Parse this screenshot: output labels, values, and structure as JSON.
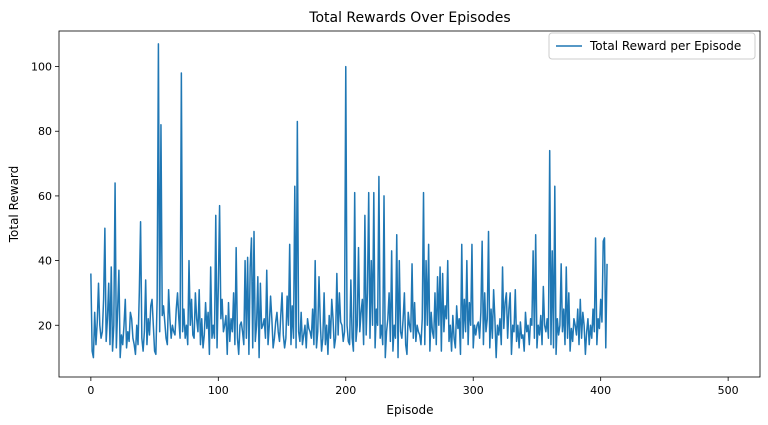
{
  "chart_data": {
    "type": "line",
    "title": "Total Rewards Over Episodes",
    "xlabel": "Episode",
    "ylabel": "Total Reward",
    "xlim": [
      -25,
      525
    ],
    "ylim": [
      4,
      111
    ],
    "xticks": [
      0,
      100,
      200,
      300,
      400,
      500
    ],
    "yticks": [
      20,
      40,
      60,
      80,
      100
    ],
    "grid": false,
    "legend": "top-right",
    "series": [
      {
        "name": "Total Reward per Episode",
        "color": "#1f77b4",
        "values": [
          36,
          12,
          10,
          24,
          14,
          21,
          33,
          20,
          16,
          18,
          28,
          50,
          15,
          22,
          33,
          14,
          38,
          12,
          20,
          64,
          13,
          25,
          37,
          10,
          17,
          14,
          20,
          28,
          13,
          18,
          15,
          24,
          22,
          16,
          14,
          11,
          20,
          14,
          30,
          52,
          16,
          12,
          18,
          34,
          14,
          22,
          17,
          26,
          28,
          20,
          12,
          11,
          28,
          107,
          18,
          82,
          23,
          26,
          21,
          16,
          14,
          31,
          22,
          16,
          20,
          18,
          17,
          25,
          30,
          22,
          16,
          98,
          18,
          25,
          16,
          20,
          14,
          40,
          20,
          28,
          17,
          16,
          30,
          22,
          18,
          31,
          14,
          22,
          13,
          17,
          27,
          19,
          24,
          11,
          38,
          16,
          20,
          16,
          54,
          13,
          32,
          57,
          22,
          28,
          18,
          20,
          23,
          11,
          27,
          15,
          22,
          18,
          30,
          14,
          44,
          16,
          11,
          20,
          21,
          18,
          14,
          40,
          16,
          41,
          11,
          38,
          47,
          13,
          49,
          15,
          20,
          35,
          10,
          33,
          19,
          20,
          22,
          16,
          37,
          14,
          20,
          29,
          22,
          13,
          16,
          21,
          24,
          18,
          15,
          23,
          30,
          17,
          13,
          16,
          29,
          20,
          45,
          14,
          26,
          16,
          63,
          13,
          83,
          18,
          15,
          24,
          14,
          17,
          20,
          13,
          22,
          19,
          18,
          16,
          25,
          14,
          40,
          13,
          18,
          35,
          21,
          12,
          16,
          30,
          14,
          20,
          11,
          23,
          16,
          28,
          22,
          13,
          16,
          36,
          17,
          30,
          21,
          20,
          15,
          18,
          100,
          20,
          15,
          14,
          34,
          16,
          12,
          61,
          15,
          20,
          44,
          18,
          24,
          28,
          14,
          54,
          17,
          30,
          61,
          16,
          40,
          20,
          61,
          13,
          25,
          20,
          66,
          16,
          20,
          14,
          60,
          10,
          18,
          22,
          30,
          15,
          43,
          12,
          20,
          16,
          48,
          10,
          40,
          18,
          16,
          22,
          30,
          14,
          11,
          24,
          20,
          18,
          39,
          16,
          27,
          15,
          20,
          18,
          17,
          14,
          22,
          61,
          14,
          40,
          20,
          45,
          12,
          24,
          18,
          16,
          30,
          14,
          35,
          20,
          38,
          12,
          36,
          18,
          26,
          22,
          40,
          15,
          20,
          12,
          23,
          16,
          13,
          26,
          19,
          22,
          11,
          45,
          16,
          28,
          18,
          40,
          14,
          27,
          20,
          45,
          13,
          20,
          17,
          20,
          21,
          16,
          24,
          46,
          14,
          30,
          18,
          22,
          49,
          13,
          25,
          16,
          31,
          22,
          10,
          20,
          17,
          22,
          14,
          38,
          19,
          27,
          30,
          16,
          25,
          30,
          11,
          20,
          18,
          31,
          15,
          20,
          13,
          21,
          16,
          17,
          12,
          24,
          18,
          20,
          14,
          22,
          20,
          43,
          16,
          48,
          13,
          20,
          17,
          23,
          14,
          32,
          20,
          18,
          22,
          16,
          74,
          14,
          43,
          13,
          63,
          11,
          22,
          17,
          20,
          39,
          18,
          25,
          14,
          38,
          16,
          30,
          12,
          19,
          15,
          22,
          20,
          17,
          25,
          14,
          28,
          16,
          24,
          20,
          11,
          18,
          22,
          14,
          20,
          16,
          25,
          18,
          47,
          14,
          22,
          19,
          28,
          21,
          46,
          47,
          13,
          39
        ]
      }
    ]
  }
}
